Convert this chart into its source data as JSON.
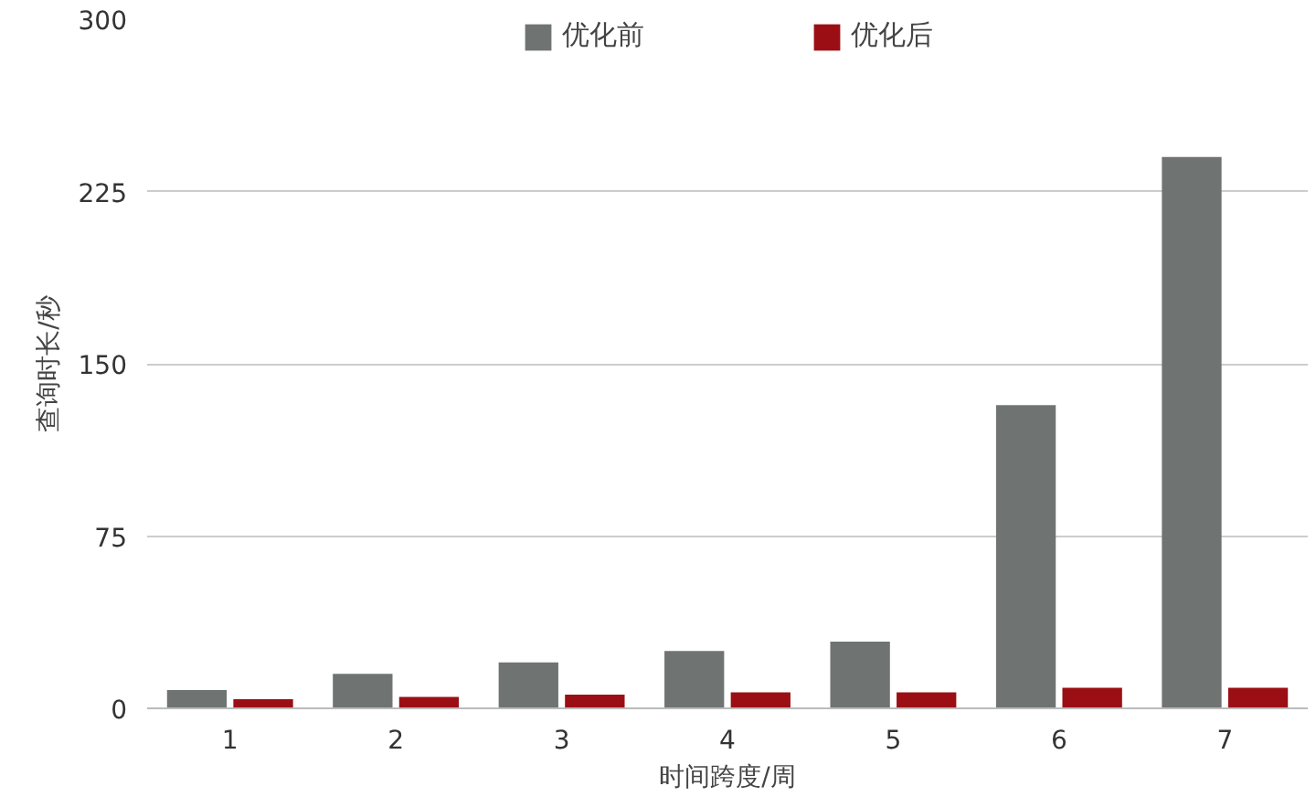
{
  "chart_data": {
    "type": "bar",
    "xlabel": "时间跨度/周",
    "ylabel": "查询时长/秒",
    "categories": [
      "1",
      "2",
      "3",
      "4",
      "5",
      "6",
      "7"
    ],
    "series": [
      {
        "name": "优化前",
        "color": "#6f7473",
        "values": [
          8,
          15,
          20,
          25,
          29,
          132,
          240
        ]
      },
      {
        "name": "优化后",
        "color": "#9b0f14",
        "values": [
          4,
          5,
          6,
          7,
          7,
          9,
          9
        ]
      }
    ],
    "ylim": [
      0,
      300
    ],
    "yticks": [
      0,
      75,
      150,
      225,
      300
    ],
    "grid": "y",
    "legend": "top"
  }
}
